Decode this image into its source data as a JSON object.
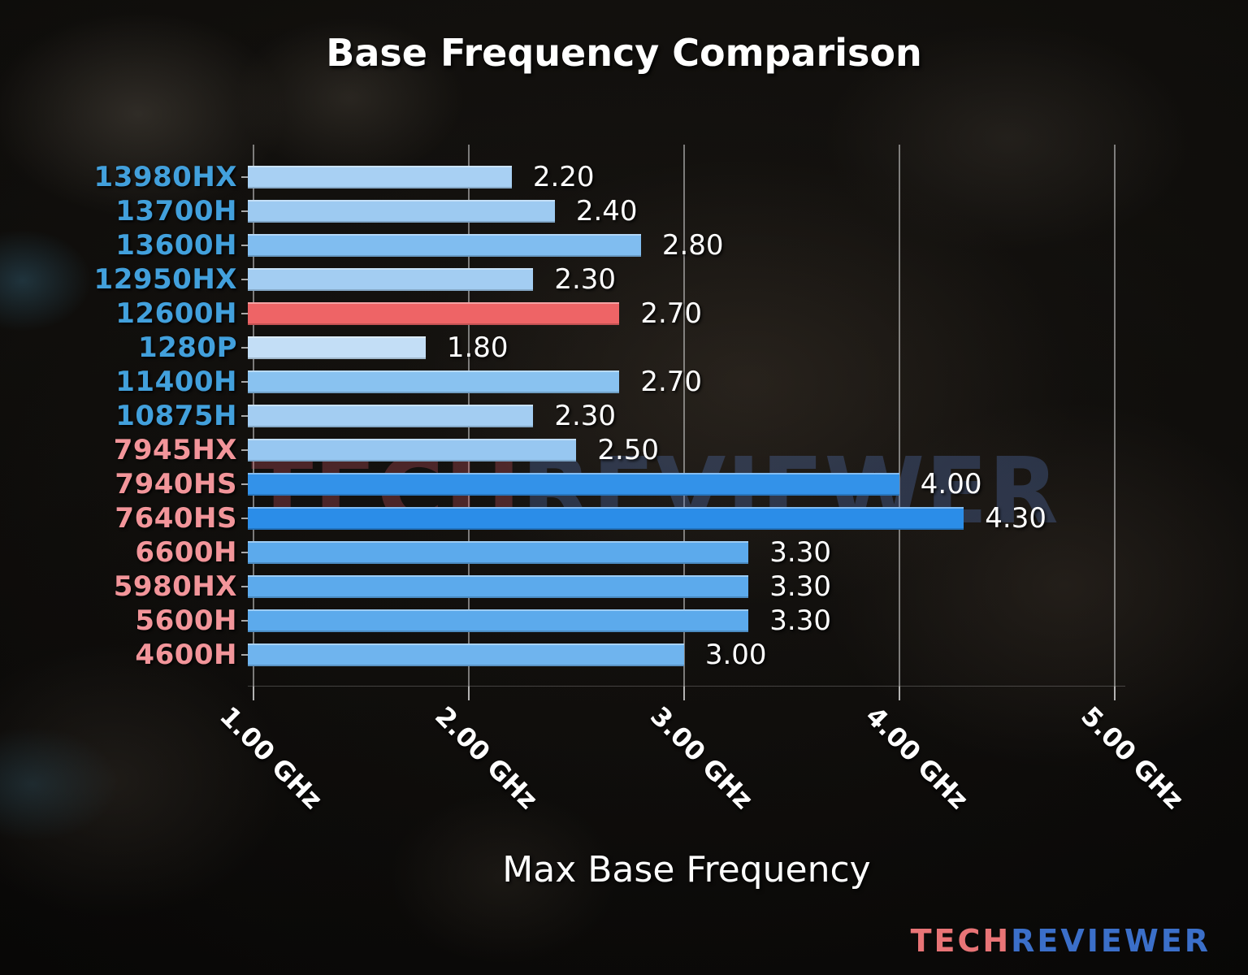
{
  "title": "Base Frequency Comparison",
  "xlabel": "Max Base Frequency",
  "watermark": {
    "part1": "TECH",
    "part2": "REVIEWER"
  },
  "logo": {
    "part1": "TECH",
    "part2": "REVIEWER"
  },
  "colors": {
    "intel_label": "#42a0dc",
    "amd_label": "#f2959a",
    "highlight_bar": "#ee6466",
    "gridline": "#d4d4d4",
    "text": "#ffffff",
    "logo_tech": "#e87476",
    "logo_reviewer": "#3b6fc9"
  },
  "chart_data": {
    "type": "bar",
    "orientation": "horizontal",
    "title": "Base Frequency Comparison",
    "xlabel": "Max Base Frequency",
    "ylabel": "",
    "grid": "vertical",
    "legend": "none",
    "xlim": [
      0.974,
      5.05
    ],
    "x_ticks": [
      {
        "value": 1.0,
        "label": "1.00 GHz"
      },
      {
        "value": 2.0,
        "label": "2.00 GHz"
      },
      {
        "value": 3.0,
        "label": "3.00 GHz"
      },
      {
        "value": 4.0,
        "label": "4.00 GHz"
      },
      {
        "value": 5.0,
        "label": "5.00 GHz"
      }
    ],
    "rows": [
      {
        "category": "13980HX",
        "brand": "intel",
        "value": 2.2,
        "display": "2.20",
        "bar_color": "#a8d0f3",
        "label_color": "#42a0dc"
      },
      {
        "category": "13700H",
        "brand": "intel",
        "value": 2.4,
        "display": "2.40",
        "bar_color": "#9dcaf1",
        "label_color": "#42a0dc"
      },
      {
        "category": "13600H",
        "brand": "intel",
        "value": 2.8,
        "display": "2.80",
        "bar_color": "#80bdf0",
        "label_color": "#42a0dc"
      },
      {
        "category": "12950HX",
        "brand": "intel",
        "value": 2.3,
        "display": "2.30",
        "bar_color": "#a3cdf2",
        "label_color": "#42a0dc"
      },
      {
        "category": "12600H",
        "brand": "intel",
        "value": 2.7,
        "display": "2.70",
        "bar_color": "#ee6466",
        "label_color": "#42a0dc"
      },
      {
        "category": "1280P",
        "brand": "intel",
        "value": 1.8,
        "display": "1.80",
        "bar_color": "#c3def6",
        "label_color": "#42a0dc"
      },
      {
        "category": "11400H",
        "brand": "intel",
        "value": 2.7,
        "display": "2.70",
        "bar_color": "#89c2f0",
        "label_color": "#42a0dc"
      },
      {
        "category": "10875H",
        "brand": "intel",
        "value": 2.3,
        "display": "2.30",
        "bar_color": "#a3cdf2",
        "label_color": "#42a0dc"
      },
      {
        "category": "7945HX",
        "brand": "amd",
        "value": 2.5,
        "display": "2.50",
        "bar_color": "#97c7f1",
        "label_color": "#f2959a"
      },
      {
        "category": "7940HS",
        "brand": "amd",
        "value": 4.0,
        "display": "4.00",
        "bar_color": "#3392e9",
        "label_color": "#f2959a"
      },
      {
        "category": "7640HS",
        "brand": "amd",
        "value": 4.3,
        "display": "4.30",
        "bar_color": "#2b8de8",
        "label_color": "#f2959a"
      },
      {
        "category": "6600H",
        "brand": "amd",
        "value": 3.3,
        "display": "3.30",
        "bar_color": "#5caaec",
        "label_color": "#f2959a"
      },
      {
        "category": "5980HX",
        "brand": "amd",
        "value": 3.3,
        "display": "3.30",
        "bar_color": "#5caaec",
        "label_color": "#f2959a"
      },
      {
        "category": "5600H",
        "brand": "amd",
        "value": 3.3,
        "display": "3.30",
        "bar_color": "#5caaec",
        "label_color": "#f2959a"
      },
      {
        "category": "4600H",
        "brand": "amd",
        "value": 3.0,
        "display": "3.00",
        "bar_color": "#6fb4ee",
        "label_color": "#f2959a"
      }
    ]
  }
}
